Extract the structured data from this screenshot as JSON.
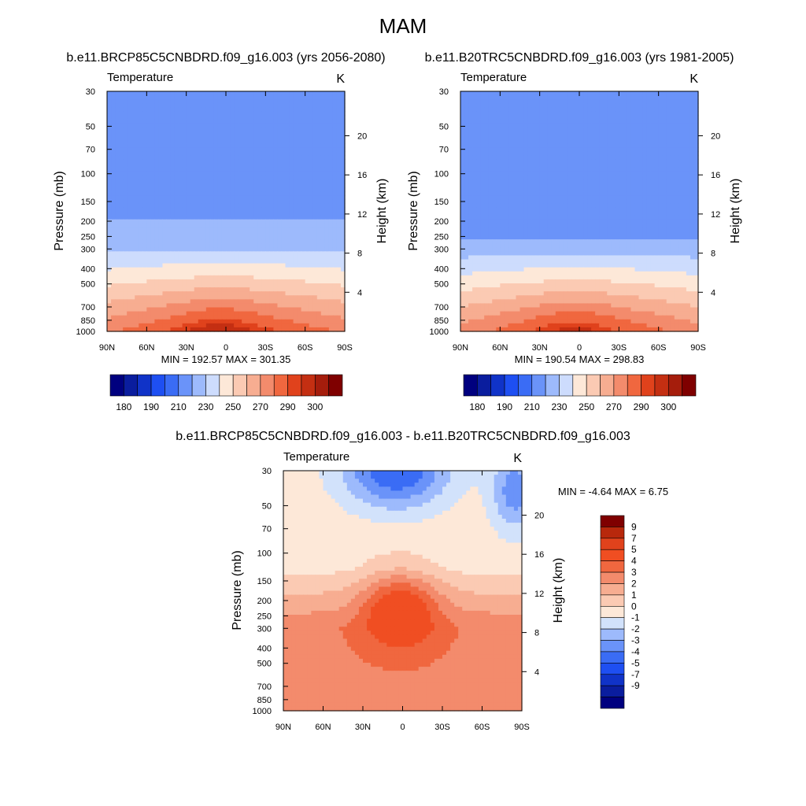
{
  "figure": {
    "title": "MAM"
  },
  "colors": {
    "temperature_palette": [
      "#00007f",
      "#0a1d9e",
      "#1033c8",
      "#1e4ff2",
      "#3a6cf5",
      "#6a93f9",
      "#9dbafc",
      "#cddcfd",
      "#fde8d8",
      "#fbcab3",
      "#f7ad91",
      "#f38b6c",
      "#f0673f",
      "#e0421c",
      "#c42f12",
      "#a51d0c",
      "#7f0000"
    ],
    "difference_palette": [
      "#00007f",
      "#0a1d9e",
      "#1033c8",
      "#1e4ff2",
      "#3a6cf5",
      "#6a93f9",
      "#9dbafc",
      "#d2e2fb",
      "#fde8d8",
      "#fbcab3",
      "#f7ad91",
      "#f38b6c",
      "#f0673f",
      "#f04e22",
      "#e0421c",
      "#b8280c",
      "#7f0000"
    ]
  },
  "chart_data": [
    {
      "id": "future",
      "type": "heatmap",
      "title": "b.e11.BRCP85C5CNBDRD.f09_g16.003 (yrs 2056-2080)",
      "left_string": "Temperature",
      "right_string": "K",
      "ylabel": "Pressure (mb)",
      "y2label": "Height (km)",
      "x_ticks": [
        "90N",
        "60N",
        "30N",
        "0",
        "30S",
        "60S",
        "90S"
      ],
      "x_values": [
        90,
        60,
        30,
        0,
        -30,
        -60,
        -90
      ],
      "xlim": [
        90,
        -90
      ],
      "y_scale": "log",
      "y_ticks": [
        30,
        50,
        70,
        100,
        150,
        200,
        250,
        300,
        400,
        500,
        700,
        850,
        1000
      ],
      "ylim": [
        1000,
        30
      ],
      "y2_ticks": [
        4,
        8,
        12,
        16,
        20
      ],
      "min": 192.57,
      "max": 301.35,
      "min_max_label": "MIN = 192.57  MAX = 301.35",
      "colorbar": {
        "orientation": "horizontal",
        "levels": [
          180,
          185,
          190,
          200,
          210,
          220,
          230,
          240,
          250,
          260,
          270,
          280,
          290,
          295,
          300,
          305
        ],
        "tick_labels": [
          "180",
          "190",
          "210",
          "230",
          "250",
          "270",
          "290",
          "300"
        ]
      }
    },
    {
      "id": "present",
      "type": "heatmap",
      "title": "b.e11.B20TRC5CNBDRD.f09_g16.003 (yrs 1981-2005)",
      "left_string": "Temperature",
      "right_string": "K",
      "ylabel": "Pressure (mb)",
      "y2label": "Height (km)",
      "x_ticks": [
        "90N",
        "60N",
        "30N",
        "0",
        "30S",
        "60S",
        "90S"
      ],
      "x_values": [
        90,
        60,
        30,
        0,
        -30,
        -60,
        -90
      ],
      "xlim": [
        90,
        -90
      ],
      "y_scale": "log",
      "y_ticks": [
        30,
        50,
        70,
        100,
        150,
        200,
        250,
        300,
        400,
        500,
        700,
        850,
        1000
      ],
      "ylim": [
        1000,
        30
      ],
      "y2_ticks": [
        4,
        8,
        12,
        16,
        20
      ],
      "min": 190.54,
      "max": 298.83,
      "min_max_label": "MIN = 190.54  MAX = 298.83",
      "colorbar": {
        "orientation": "horizontal",
        "levels": [
          180,
          185,
          190,
          200,
          210,
          220,
          230,
          240,
          250,
          260,
          270,
          280,
          290,
          295,
          300,
          305
        ],
        "tick_labels": [
          "180",
          "190",
          "210",
          "230",
          "250",
          "270",
          "290",
          "300"
        ]
      }
    },
    {
      "id": "difference",
      "type": "heatmap",
      "title": "b.e11.BRCP85C5CNBDRD.f09_g16.003 - b.e11.B20TRC5CNBDRD.f09_g16.003",
      "left_string": "Temperature",
      "right_string": "K",
      "ylabel": "Pressure (mb)",
      "y2label": "Height (km)",
      "x_ticks": [
        "90N",
        "60N",
        "30N",
        "0",
        "30S",
        "60S",
        "90S"
      ],
      "x_values": [
        90,
        60,
        30,
        0,
        -30,
        -60,
        -90
      ],
      "xlim": [
        90,
        -90
      ],
      "y_scale": "log",
      "y_ticks": [
        30,
        50,
        70,
        100,
        150,
        200,
        250,
        300,
        400,
        500,
        700,
        850,
        1000
      ],
      "ylim": [
        1000,
        30
      ],
      "y2_ticks": [
        4,
        8,
        12,
        16,
        20
      ],
      "min": -4.64,
      "max": 6.75,
      "min_max_label": "MIN =  -4.64  MAX =   6.75",
      "colorbar": {
        "orientation": "vertical",
        "levels": [
          -9,
          -7,
          -5,
          -4,
          -3,
          -2,
          -1,
          0,
          1,
          2,
          3,
          4,
          5,
          7,
          9
        ],
        "tick_labels": [
          "9",
          "7",
          "5",
          "4",
          "3",
          "2",
          "1",
          "0",
          "-1",
          "-2",
          "-3",
          "-4",
          "-5",
          "-7",
          "-9"
        ]
      }
    }
  ]
}
